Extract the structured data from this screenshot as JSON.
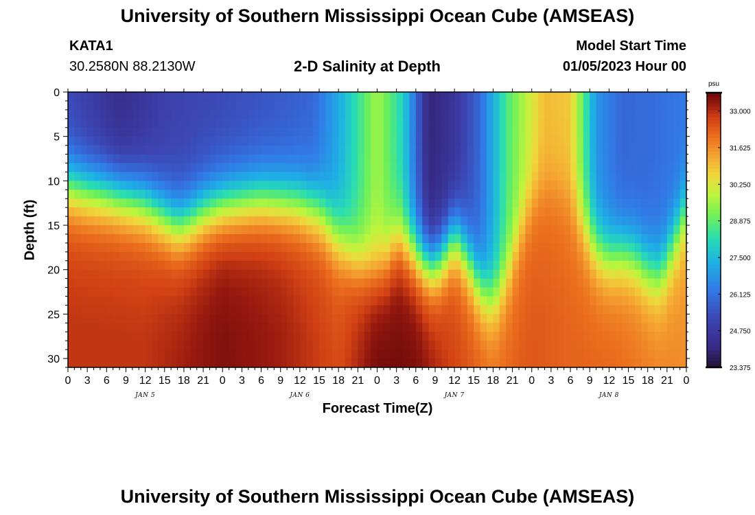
{
  "header": {
    "title": "University of Southern Mississippi Ocean Cube (AMSEAS)",
    "station_id": "KATA1",
    "station_coords": "30.2580N  88.2130W",
    "plot_title": "2-D Salinity at Depth",
    "model_start_label": "Model Start Time",
    "model_start_value": "01/05/2023 Hour 00"
  },
  "footer": {
    "title": "University of Southern Mississippi Ocean Cube (AMSEAS)"
  },
  "chart_data": {
    "type": "heatmap",
    "title": "2-D Salinity at Depth",
    "xlabel": "Forecast Time(Z)",
    "ylabel": "Depth (ft)",
    "x_range_hours": [
      0,
      96
    ],
    "y_range_ft": [
      0,
      31
    ],
    "x_tick_labels": [
      "0",
      "3",
      "6",
      "9",
      "12",
      "15",
      "18",
      "21",
      "0",
      "3",
      "6",
      "9",
      "12",
      "15",
      "18",
      "21",
      "0",
      "3",
      "6",
      "9",
      "12",
      "15",
      "18",
      "21",
      "0",
      "3",
      "6",
      "9",
      "12",
      "15",
      "18",
      "21",
      "0"
    ],
    "y_ticks": [
      0,
      5,
      10,
      15,
      20,
      25,
      30
    ],
    "date_labels": [
      {
        "hour": 12,
        "label": "JAN 5"
      },
      {
        "hour": 36,
        "label": "JAN 6"
      },
      {
        "hour": 60,
        "label": "JAN 7"
      },
      {
        "hour": 84,
        "label": "JAN 8"
      }
    ],
    "colorbar": {
      "unit": "psu",
      "min": 23.375,
      "max": 33.6875,
      "tick_labels": [
        "33.000",
        "31.625",
        "30.250",
        "28.875",
        "27.500",
        "26.125",
        "24.750",
        "23.375"
      ],
      "tick_values": [
        33.0,
        31.625,
        30.25,
        28.875,
        27.5,
        26.125,
        24.75,
        23.375
      ]
    },
    "halocline_depth_ft": {
      "hours": [
        0,
        3,
        6,
        9,
        12,
        15,
        17,
        19,
        21,
        24,
        27,
        30,
        33,
        36,
        39,
        42,
        45,
        48,
        50,
        51,
        53,
        55,
        57,
        59,
        60,
        62,
        64,
        66,
        68,
        70,
        72,
        74,
        76,
        78,
        80,
        82,
        84,
        86,
        88,
        90,
        92,
        94,
        96
      ],
      "depth": [
        10.5,
        11,
        11.3,
        11.8,
        12.5,
        14,
        15,
        14.5,
        13.5,
        12.7,
        12.3,
        12,
        12.2,
        12.5,
        13.5,
        16.5,
        19,
        20,
        18.5,
        16.5,
        17.5,
        19,
        19.5,
        17.5,
        16,
        18.5,
        22,
        23.5,
        21,
        16,
        12,
        10.5,
        10.5,
        12,
        15,
        17.5,
        18.5,
        18,
        18.5,
        20,
        20.5,
        17,
        13
      ]
    },
    "series": [
      {
        "name": "deep_layer_salinity_psu",
        "hours": [
          0,
          12,
          24,
          33,
          42,
          48,
          54,
          60,
          66,
          72,
          78,
          84,
          90,
          96
        ],
        "values": [
          32.6,
          32.6,
          33.2,
          32.9,
          32.3,
          33.4,
          33.3,
          32.4,
          31.8,
          32.1,
          31.9,
          31.9,
          31.6,
          31.3
        ]
      },
      {
        "name": "surface_salinity_psu",
        "hours": [
          0,
          8,
          16,
          24,
          32,
          38,
          42,
          48,
          52,
          56,
          60,
          64,
          68,
          72,
          74,
          78,
          82,
          86,
          90,
          96
        ],
        "values": [
          25.3,
          24.3,
          25.1,
          25.3,
          25.6,
          25.9,
          27.2,
          29.6,
          28.0,
          24.0,
          24.6,
          26.0,
          28.6,
          30.2,
          31.0,
          30.8,
          26.8,
          25.9,
          26.0,
          26.3
        ]
      }
    ]
  }
}
